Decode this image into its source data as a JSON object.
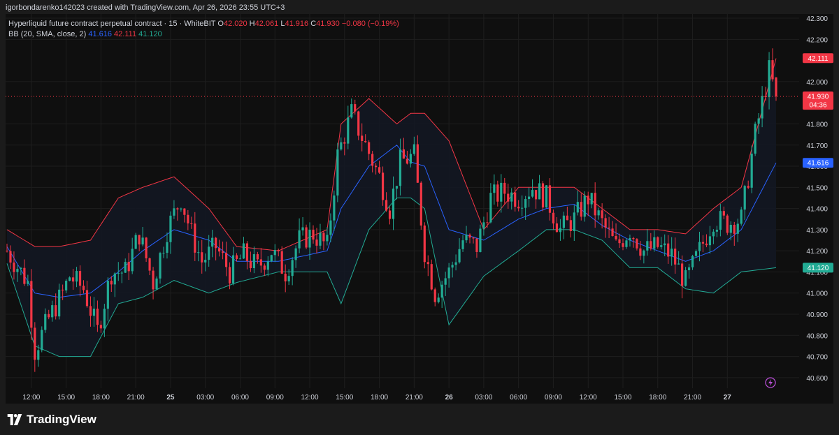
{
  "header": {
    "credit": "igorbondarenko142023 created with TradingView.com, Apr 26, 2026 23:55 UTC+3"
  },
  "legend": {
    "symbol": "Hyperliquid future contract perpetual contract · 15 · WhiteBIT",
    "o_label": "O",
    "o_value": "42.020",
    "h_label": "H",
    "h_value": "42.061",
    "l_label": "L",
    "l_value": "41.916",
    "c_label": "C",
    "c_value": "41.930",
    "change": "−0.080 (−0.19%)",
    "bb_label": "BB (20, SMA, close, 2)",
    "bb_basis": "41.616",
    "bb_upper": "42.111",
    "bb_lower": "41.120"
  },
  "brand": {
    "name": "TradingView"
  },
  "colors": {
    "up": "#22ab94",
    "down": "#f23645",
    "basis": "#2962ff",
    "upper": "#f23645",
    "lower": "#22ab94",
    "fill": "#131722",
    "grid": "#1e1e1e",
    "text": "#d1d4dc",
    "bg": "#0f0f0f"
  },
  "icons": {
    "lightning": "lightning-icon",
    "logo": "tradingview-logo-icon"
  },
  "chart_data": {
    "type": "candlestick",
    "interval": "15",
    "ylim": [
      40.55,
      42.32
    ],
    "y_ticks": [
      "42.300",
      "42.200",
      "42.000",
      "41.800",
      "41.700",
      "41.600",
      "41.500",
      "41.400",
      "41.300",
      "41.200",
      "41.100",
      "41.000",
      "40.900",
      "40.800",
      "40.700",
      "40.600"
    ],
    "x_ticks": [
      "12:00",
      "15:00",
      "18:00",
      "21:00",
      "25",
      "03:00",
      "06:00",
      "09:00",
      "12:00",
      "15:00",
      "18:00",
      "21:00",
      "26",
      "03:00",
      "06:00",
      "09:00",
      "12:00",
      "15:00",
      "18:00",
      "21:00",
      "27"
    ],
    "price_labels": [
      {
        "value": "42.111",
        "text": "42.111",
        "series": "upper"
      },
      {
        "value": "41.930",
        "text": "41.930",
        "sub": "04:36",
        "series": "last"
      },
      {
        "value": "41.616",
        "text": "41.616",
        "series": "basis"
      },
      {
        "value": "41.120",
        "text": "41.120",
        "series": "lower"
      }
    ],
    "anchors": [
      [
        0,
        41.2
      ],
      [
        6,
        41.05
      ],
      [
        8,
        40.73
      ],
      [
        12,
        40.88
      ],
      [
        16,
        41.0
      ],
      [
        18,
        41.08
      ],
      [
        22,
        41.02
      ],
      [
        26,
        40.82
      ],
      [
        30,
        41.1
      ],
      [
        34,
        41.1
      ],
      [
        38,
        41.28
      ],
      [
        42,
        41.05
      ],
      [
        46,
        41.3
      ],
      [
        50,
        41.45
      ],
      [
        53,
        41.28
      ],
      [
        56,
        41.15
      ],
      [
        60,
        41.22
      ],
      [
        64,
        41.1
      ],
      [
        68,
        41.18
      ],
      [
        72,
        41.12
      ],
      [
        76,
        41.2
      ],
      [
        80,
        41.1
      ],
      [
        84,
        41.25
      ],
      [
        88,
        41.28
      ],
      [
        92,
        41.22
      ],
      [
        95,
        41.65
      ],
      [
        99,
        41.85
      ],
      [
        103,
        41.7
      ],
      [
        107,
        41.55
      ],
      [
        110,
        41.4
      ],
      [
        113,
        41.62
      ],
      [
        117,
        41.65
      ],
      [
        120,
        41.2
      ],
      [
        123,
        41.0
      ],
      [
        127,
        41.1
      ],
      [
        131,
        41.25
      ],
      [
        135,
        41.22
      ],
      [
        139,
        41.45
      ],
      [
        143,
        41.48
      ],
      [
        147,
        41.45
      ],
      [
        151,
        41.5
      ],
      [
        155,
        41.45
      ],
      [
        159,
        41.3
      ],
      [
        163,
        41.35
      ],
      [
        167,
        41.45
      ],
      [
        171,
        41.33
      ],
      [
        175,
        41.22
      ],
      [
        179,
        41.3
      ],
      [
        183,
        41.2
      ],
      [
        187,
        41.22
      ],
      [
        191,
        41.18
      ],
      [
        195,
        41.05
      ],
      [
        199,
        41.2
      ],
      [
        203,
        41.35
      ],
      [
        207,
        41.33
      ],
      [
        211,
        41.35
      ],
      [
        215,
        41.75
      ],
      [
        219,
        42.05
      ],
      [
        221,
        41.93
      ]
    ],
    "band_anchors": [
      [
        0,
        41.3,
        41.22,
        41.14
      ],
      [
        8,
        41.22,
        41.0,
        40.75
      ],
      [
        15,
        41.22,
        40.98,
        40.7
      ],
      [
        24,
        41.25,
        41.0,
        40.7
      ],
      [
        32,
        41.45,
        41.1,
        40.95
      ],
      [
        39,
        41.5,
        41.2,
        40.98
      ],
      [
        48,
        41.55,
        41.3,
        41.06
      ],
      [
        58,
        41.4,
        41.25,
        41.0
      ],
      [
        66,
        41.22,
        41.15,
        41.05
      ],
      [
        78,
        41.2,
        41.15,
        41.1
      ],
      [
        92,
        41.3,
        41.2,
        41.1
      ],
      [
        96,
        41.8,
        41.4,
        40.95
      ],
      [
        104,
        41.92,
        41.6,
        41.3
      ],
      [
        112,
        41.8,
        41.7,
        41.45
      ],
      [
        116,
        41.85,
        41.62,
        41.45
      ],
      [
        120,
        41.85,
        41.6,
        41.4
      ],
      [
        127,
        41.72,
        41.3,
        40.85
      ],
      [
        137,
        41.3,
        41.25,
        41.08
      ],
      [
        147,
        41.5,
        41.35,
        41.2
      ],
      [
        155,
        41.5,
        41.4,
        41.3
      ],
      [
        163,
        41.5,
        41.42,
        41.3
      ],
      [
        171,
        41.4,
        41.32,
        41.25
      ],
      [
        179,
        41.3,
        41.25,
        41.12
      ],
      [
        187,
        41.3,
        41.2,
        41.12
      ],
      [
        195,
        41.28,
        41.15,
        41.02
      ],
      [
        203,
        41.4,
        41.2,
        41.0
      ],
      [
        211,
        41.5,
        41.3,
        41.1
      ],
      [
        221,
        42.11,
        41.616,
        41.12
      ]
    ],
    "candle_count": 222,
    "x_tick_index": [
      7,
      17,
      27,
      37,
      47,
      57,
      67,
      77,
      87,
      97,
      107,
      117,
      127,
      137,
      147,
      157,
      167,
      177,
      187,
      197,
      207
    ]
  }
}
